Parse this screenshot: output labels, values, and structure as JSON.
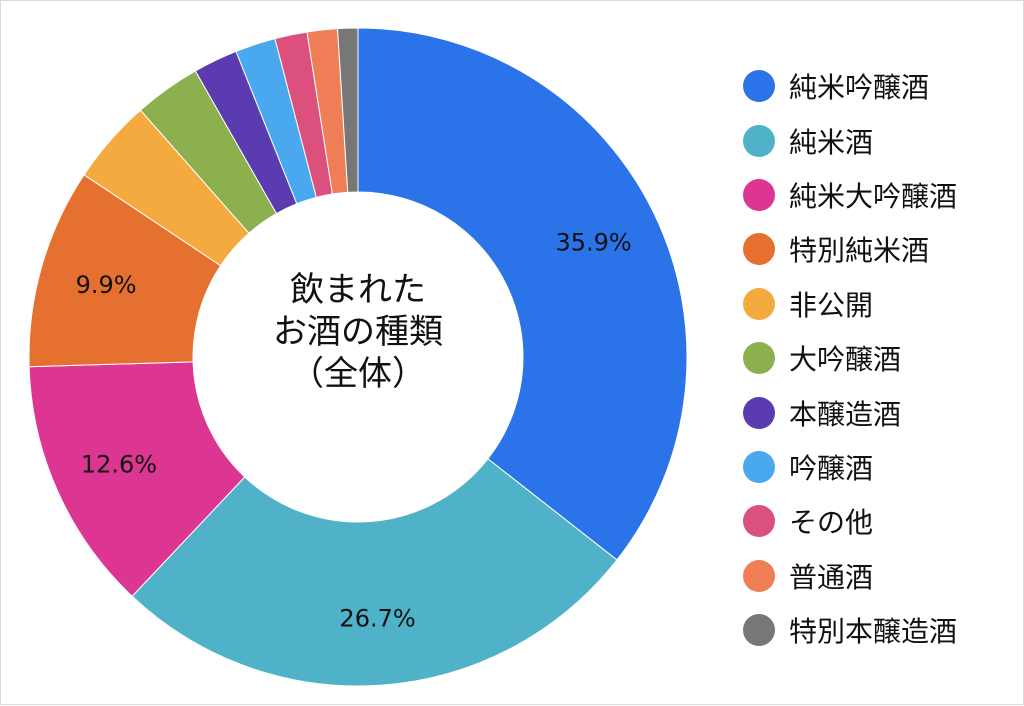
{
  "chart_data": {
    "type": "pie",
    "title_lines": [
      "飲まれた",
      "お酒の種類",
      "（全体）"
    ],
    "slices": [
      {
        "name": "純米吟醸酒",
        "value": 35.9,
        "label": "35.9%",
        "color": "#2B73E8"
      },
      {
        "name": "純米酒",
        "value": 26.7,
        "label": "26.7%",
        "color": "#4FB2C8"
      },
      {
        "name": "純米大吟醸酒",
        "value": 12.6,
        "label": "12.6%",
        "color": "#DC3592"
      },
      {
        "name": "特別純米酒",
        "value": 9.9,
        "label": "9.9%",
        "color": "#E6702F"
      },
      {
        "name": "非公開",
        "value": 4.2,
        "label": "",
        "color": "#F4AA3F"
      },
      {
        "name": "大吟醸酒",
        "value": 3.3,
        "label": "",
        "color": "#8BB04D"
      },
      {
        "name": "本醸造酒",
        "value": 2.2,
        "label": "",
        "color": "#5B3BB0"
      },
      {
        "name": "吟醸酒",
        "value": 2.0,
        "label": "",
        "color": "#4AA8EE"
      },
      {
        "name": "その他",
        "value": 1.6,
        "label": "",
        "color": "#DB507C"
      },
      {
        "name": "普通酒",
        "value": 1.5,
        "label": "",
        "color": "#EF7D55"
      },
      {
        "name": "特別本醸造酒",
        "value": 1.0,
        "label": "",
        "color": "#777777"
      }
    ],
    "legend_position": "right"
  }
}
